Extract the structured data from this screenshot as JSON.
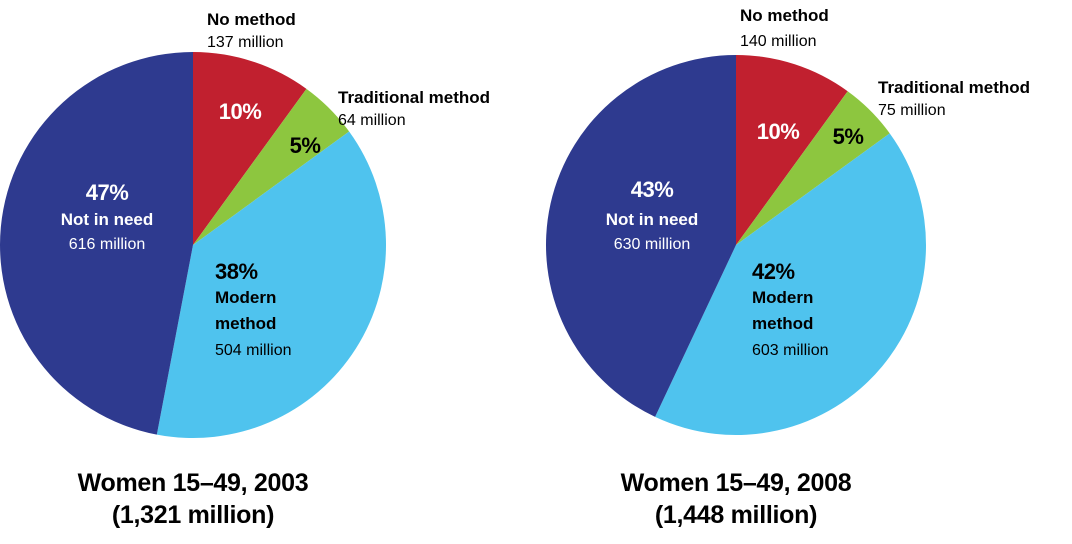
{
  "chart_data": [
    {
      "type": "pie",
      "title": "Women 15–49, 2003",
      "subtitle": "(1,321 million)",
      "categories": [
        "No method",
        "Traditional method",
        "Modern method",
        "Not in need"
      ],
      "values": [
        10,
        5,
        38,
        47
      ],
      "value_labels": [
        "10%",
        "5%",
        "38%",
        "47%"
      ],
      "amount_labels": [
        "137 million",
        "64 million",
        "504 million",
        "616 million"
      ],
      "colors": [
        "#c1202f",
        "#8dc63f",
        "#4fc3ee",
        "#2e3a8f"
      ]
    },
    {
      "type": "pie",
      "title": "Women 15–49, 2008",
      "subtitle": "(1,448 million)",
      "categories": [
        "No method",
        "Traditional method",
        "Modern method",
        "Not in need"
      ],
      "values": [
        10,
        5,
        42,
        43
      ],
      "value_labels": [
        "10%",
        "5%",
        "42%",
        "43%"
      ],
      "amount_labels": [
        "140 million",
        "75 million",
        "603 million",
        "630 million"
      ],
      "colors": [
        "#c1202f",
        "#8dc63f",
        "#4fc3ee",
        "#2e3a8f"
      ]
    }
  ]
}
